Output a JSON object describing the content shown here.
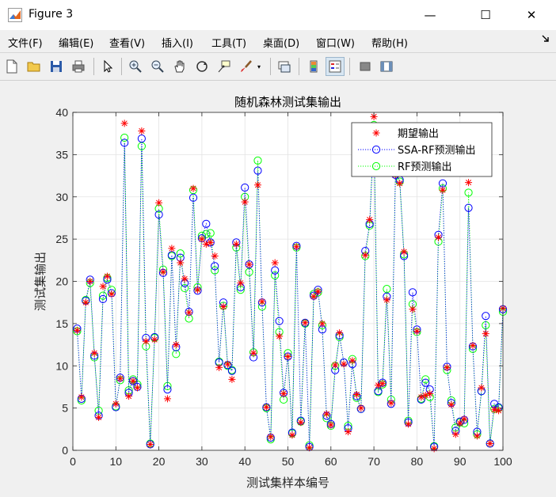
{
  "window": {
    "title": "Figure 3",
    "controls": {
      "minimize": "—",
      "maximize": "☐",
      "close": "✕"
    }
  },
  "menu": [
    {
      "label": "文件(F)"
    },
    {
      "label": "编辑(E)"
    },
    {
      "label": "查看(V)"
    },
    {
      "label": "插入(I)"
    },
    {
      "label": "工具(T)"
    },
    {
      "label": "桌面(D)"
    },
    {
      "label": "窗口(W)"
    },
    {
      "label": "帮助(H)"
    }
  ],
  "toolbar": {
    "buttons": [
      "new-figure-icon",
      "open-file-icon",
      "save-icon",
      "print-icon",
      "pointer-icon",
      "zoom-in-icon",
      "zoom-out-icon",
      "pan-hand-icon",
      "rotate-3d-icon",
      "data-cursor-icon",
      "brush-icon",
      "link-plot-icon",
      "colorbar-icon",
      "legend-icon",
      "hide-plot-tools-icon",
      "show-plot-tools-icon"
    ]
  },
  "chart_data": {
    "type": "line",
    "title": "随机森林测试集输出",
    "xlabel": "测试集样本编号",
    "ylabel": "测试集输出",
    "xlim": [
      0,
      100
    ],
    "ylim": [
      0,
      40
    ],
    "xticks": [
      0,
      10,
      20,
      30,
      40,
      50,
      60,
      70,
      80,
      90,
      100
    ],
    "yticks": [
      0,
      5,
      10,
      15,
      20,
      25,
      30,
      35,
      40
    ],
    "grid": true,
    "legend_position": "top-right",
    "x": [
      1,
      2,
      3,
      4,
      5,
      6,
      7,
      8,
      9,
      10,
      11,
      12,
      13,
      14,
      15,
      16,
      17,
      18,
      19,
      20,
      21,
      22,
      23,
      24,
      25,
      26,
      27,
      28,
      29,
      30,
      31,
      32,
      33,
      34,
      35,
      36,
      37,
      38,
      39,
      40,
      41,
      42,
      43,
      44,
      45,
      46,
      47,
      48,
      49,
      50,
      51,
      52,
      53,
      54,
      55,
      56,
      57,
      58,
      59,
      60,
      61,
      62,
      63,
      64,
      65,
      66,
      67,
      68,
      69,
      70,
      71,
      72,
      73,
      74,
      75,
      76,
      77,
      78,
      79,
      80,
      81,
      82,
      83,
      84,
      85,
      86,
      87,
      88,
      89,
      90,
      91,
      92,
      93,
      94,
      95,
      96,
      97,
      98,
      99,
      100
    ],
    "series": [
      {
        "name": "期望输出",
        "color": "#ff0000",
        "marker": "asterisk",
        "line": "none",
        "values": [
          14.2,
          6.3,
          17.5,
          20.0,
          11.5,
          3.9,
          19.4,
          20.6,
          18.5,
          5.5,
          8.5,
          38.7,
          6.4,
          8.2,
          7.4,
          37.8,
          12.9,
          0.7,
          13.1,
          29.3,
          21.1,
          6.1,
          23.9,
          12.5,
          22.2,
          20.3,
          16.3,
          31.0,
          19.0,
          25.0,
          24.4,
          24.6,
          23.0,
          9.8,
          17.0,
          10.2,
          8.4,
          24.4,
          19.8,
          29.4,
          22.0,
          11.5,
          31.4,
          17.6,
          5.1,
          1.6,
          22.2,
          13.5,
          6.7,
          11.1,
          1.8,
          24.1,
          3.3,
          15.1,
          0.3,
          18.2,
          18.8,
          15.0,
          4.3,
          3.0,
          10.1,
          13.9,
          10.2,
          2.2,
          10.6,
          6.6,
          5.0,
          23.1,
          27.3,
          39.5,
          7.7,
          7.9,
          17.8,
          5.6,
          32.6,
          31.6,
          23.5,
          3.1,
          16.7,
          14.1,
          6.3,
          6.5,
          6.7,
          0.2,
          25.2,
          30.8,
          9.8,
          5.4,
          1.9,
          3.2,
          3.7,
          31.7,
          12.4,
          1.7,
          7.4,
          13.8,
          0.8,
          4.8,
          4.7,
          16.8
        ]
      },
      {
        "name": "SSA-RF预测输出",
        "color": "#0000ff",
        "marker": "circle",
        "line": "dotted",
        "values": [
          14.4,
          6.1,
          17.7,
          20.2,
          11.2,
          4.1,
          17.9,
          20.2,
          18.6,
          5.1,
          8.6,
          36.4,
          6.8,
          8.2,
          7.5,
          36.9,
          13.3,
          0.7,
          13.4,
          27.9,
          21.0,
          7.2,
          23.1,
          12.2,
          22.8,
          19.8,
          16.4,
          29.9,
          18.9,
          25.1,
          26.8,
          24.6,
          21.8,
          10.4,
          17.5,
          10.1,
          9.4,
          24.6,
          19.3,
          31.1,
          22.0,
          11.0,
          33.1,
          17.5,
          5.1,
          1.5,
          21.3,
          15.3,
          6.8,
          11.1,
          2.1,
          24.2,
          3.5,
          15.1,
          0.4,
          18.3,
          19.0,
          14.3,
          4.1,
          3.1,
          9.5,
          13.6,
          10.4,
          2.6,
          10.2,
          6.4,
          4.9,
          23.6,
          26.8,
          37.6,
          7.0,
          8.0,
          18.2,
          5.5,
          32.6,
          32.0,
          23.0,
          3.3,
          18.7,
          14.3,
          6.0,
          8.0,
          7.2,
          0.4,
          25.5,
          31.6,
          9.9,
          5.6,
          2.3,
          3.4,
          3.6,
          28.7,
          12.3,
          2.2,
          7.0,
          15.9,
          0.8,
          5.5,
          5.1,
          16.7
        ]
      },
      {
        "name": "RF预测输出",
        "color": "#00ff00",
        "marker": "circle",
        "line": "dotted",
        "values": [
          14.1,
          5.9,
          17.8,
          19.8,
          11.0,
          4.7,
          18.3,
          20.4,
          19.0,
          5.2,
          8.3,
          37.0,
          7.1,
          8.4,
          7.8,
          36.0,
          12.3,
          0.8,
          13.3,
          28.6,
          21.4,
          7.6,
          23.0,
          11.4,
          23.3,
          19.2,
          15.6,
          30.8,
          19.3,
          25.4,
          25.6,
          25.7,
          21.3,
          10.5,
          17.1,
          10.0,
          9.5,
          24.0,
          19.0,
          30.0,
          21.1,
          11.6,
          34.3,
          17.0,
          5.0,
          1.3,
          20.7,
          14.0,
          6.0,
          11.5,
          2.0,
          24.0,
          3.4,
          15.0,
          0.6,
          18.5,
          18.7,
          14.8,
          3.8,
          2.9,
          10.0,
          13.4,
          10.4,
          2.9,
          10.8,
          6.2,
          4.9,
          23.0,
          26.6,
          38.5,
          6.9,
          7.8,
          19.1,
          6.0,
          32.8,
          31.8,
          23.2,
          3.5,
          17.3,
          14.0,
          6.1,
          8.4,
          6.3,
          0.5,
          24.7,
          31.0,
          9.5,
          5.9,
          2.7,
          3.3,
          3.2,
          30.5,
          12.0,
          1.9,
          7.0,
          14.8,
          0.8,
          4.9,
          5.0,
          16.4
        ]
      }
    ]
  }
}
